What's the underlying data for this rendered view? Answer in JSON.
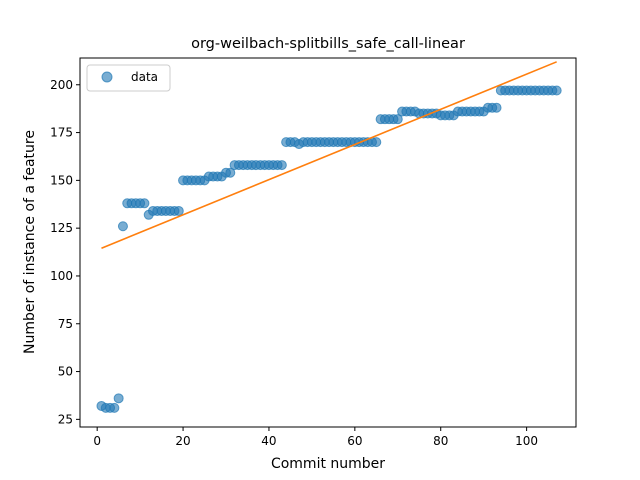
{
  "chart_data": {
    "type": "scatter",
    "title": "org-weilbach-splitbills_safe_call-linear",
    "xlabel": "Commit number",
    "ylabel": "Number of instance of a feature",
    "xlim": [
      -4,
      111.5
    ],
    "ylim": [
      21,
      214
    ],
    "xticks": [
      0,
      20,
      40,
      60,
      80,
      100
    ],
    "yticks": [
      25,
      50,
      75,
      100,
      125,
      150,
      175,
      200
    ],
    "grid": false,
    "legend_position": "upper-left",
    "series": [
      {
        "name": "data",
        "kind": "scatter",
        "color": "#1f77b4",
        "x": [
          1,
          2,
          3,
          4,
          5,
          6,
          7,
          8,
          9,
          10,
          11,
          12,
          13,
          14,
          15,
          16,
          17,
          18,
          19,
          20,
          21,
          22,
          23,
          24,
          25,
          26,
          27,
          28,
          29,
          30,
          31,
          32,
          33,
          34,
          35,
          36,
          37,
          38,
          39,
          40,
          41,
          42,
          43,
          44,
          45,
          46,
          47,
          48,
          49,
          50,
          51,
          52,
          53,
          54,
          55,
          56,
          57,
          58,
          59,
          60,
          61,
          62,
          63,
          64,
          65,
          66,
          67,
          68,
          69,
          70,
          71,
          72,
          73,
          74,
          75,
          76,
          77,
          78,
          79,
          80,
          81,
          82,
          83,
          84,
          85,
          86,
          87,
          88,
          89,
          90,
          91,
          92,
          93,
          94,
          95,
          96,
          97,
          98,
          99,
          100,
          101,
          102,
          103,
          104,
          105,
          106,
          107
        ],
        "y": [
          32,
          31,
          31,
          31,
          36,
          126,
          138,
          138,
          138,
          138,
          138,
          132,
          134,
          134,
          134,
          134,
          134,
          134,
          134,
          150,
          150,
          150,
          150,
          150,
          150,
          152,
          152,
          152,
          152,
          154,
          154,
          158,
          158,
          158,
          158,
          158,
          158,
          158,
          158,
          158,
          158,
          158,
          158,
          170,
          170,
          170,
          169,
          170,
          170,
          170,
          170,
          170,
          170,
          170,
          170,
          170,
          170,
          170,
          170,
          170,
          170,
          170,
          170,
          170,
          170,
          182,
          182,
          182,
          182,
          182,
          186,
          186,
          186,
          186,
          185,
          185,
          185,
          185,
          185,
          184,
          184,
          184,
          184,
          186,
          186,
          186,
          186,
          186,
          186,
          186,
          188,
          188,
          188,
          197,
          197,
          197,
          197,
          197,
          197,
          197,
          197,
          197,
          197,
          197,
          197,
          197,
          197
        ]
      },
      {
        "name": "",
        "kind": "line",
        "color": "#ff7f0e",
        "x": [
          1,
          107
        ],
        "y": [
          114.5,
          212
        ]
      }
    ]
  }
}
